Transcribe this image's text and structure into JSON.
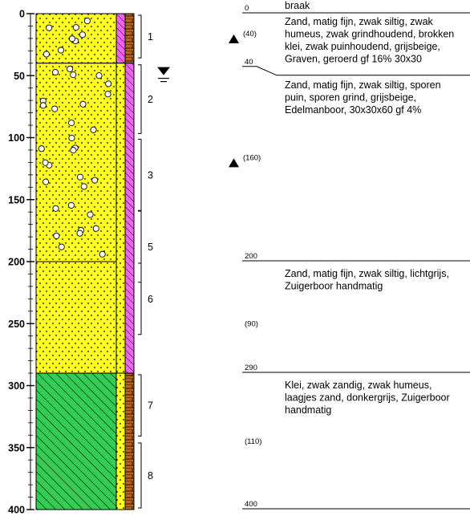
{
  "depth_axis": {
    "range_cm": [
      0,
      400
    ],
    "ticks": [
      {
        "depth": 0,
        "label": "0"
      },
      {
        "depth": 50,
        "label": "50"
      },
      {
        "depth": 100,
        "label": "100"
      },
      {
        "depth": 150,
        "label": "150"
      },
      {
        "depth": 200,
        "label": "200"
      },
      {
        "depth": 250,
        "label": "250"
      },
      {
        "depth": 300,
        "label": "300"
      },
      {
        "depth": 350,
        "label": "350"
      },
      {
        "depth": 400,
        "label": "400"
      }
    ]
  },
  "groundwater": {
    "depth": 47,
    "symbol": "water-table"
  },
  "layers": [
    {
      "top": 0,
      "bottom": 40,
      "lithology": "sand",
      "color": "#ffff22",
      "gravel": true
    },
    {
      "top": 40,
      "bottom": 200,
      "lithology": "sand",
      "color": "#ffff22",
      "gravel": true
    },
    {
      "top": 200,
      "bottom": 290,
      "lithology": "sand",
      "color": "#ffff22",
      "gravel": false
    },
    {
      "top": 290,
      "bottom": 400,
      "lithology": "clay",
      "color": "#33cc55",
      "gravel": false
    }
  ],
  "side_columns": [
    {
      "segments": [
        {
          "top": 0,
          "bottom": 40,
          "color": "#ee66ee",
          "pattern": "hatch"
        },
        {
          "top": 40,
          "bottom": 290,
          "color": "#ffff22",
          "pattern": "dots"
        },
        {
          "top": 290,
          "bottom": 400,
          "color": "#ffff22",
          "pattern": "dots"
        }
      ]
    },
    {
      "segments": [
        {
          "top": 0,
          "bottom": 40,
          "color": "#b5651d",
          "pattern": "brick"
        },
        {
          "top": 40,
          "bottom": 290,
          "color": "#ee66ee",
          "pattern": "hatch"
        },
        {
          "top": 290,
          "bottom": 400,
          "color": "#b5651d",
          "pattern": "brick"
        }
      ]
    }
  ],
  "samples": [
    {
      "label": "1",
      "top": 0,
      "bottom": 37
    },
    {
      "label": "2",
      "top": 40,
      "bottom": 98
    },
    {
      "label": "3",
      "top": 100,
      "bottom": 160
    },
    {
      "label": "5",
      "top": 158,
      "bottom": 218
    },
    {
      "label": "6",
      "top": 200,
      "bottom": 260
    },
    {
      "label": "7",
      "top": 290,
      "bottom": 342
    },
    {
      "label": "8",
      "top": 345,
      "bottom": 400
    }
  ],
  "markers": [
    {
      "depth": 20,
      "label": "(40)"
    },
    {
      "depth": 120,
      "label": "(160)"
    }
  ],
  "intervals": [
    {
      "depth": 0,
      "label": "0",
      "description": [
        "braak"
      ]
    },
    {
      "depth": 40,
      "label": "40",
      "description": [
        "Zand, matig fijn, zwak siltig, zwak",
        "humeus, zwak grindhoudend, brokken",
        "klei, zwak puinhoudend, grijsbeige,",
        "Graven, geroerd gf 16%  30x30"
      ]
    },
    {
      "depth": 200,
      "label": "200",
      "description": [
        "Zand, matig fijn, zwak siltig, sporen",
        "puin, sporen grind, grijsbeige,",
        "Edelmanboor, 30x30x60 gf 4%"
      ]
    },
    {
      "depth": 290,
      "label": "290",
      "description": [
        "Zand, matig fijn, zwak siltig, lichtgrijs,",
        "Zuigerboor handmatig"
      ]
    },
    {
      "depth": 400,
      "label": "400",
      "description": [
        "Klei, zwak zandig, zwak humeus,",
        "laagjes zand, donkergrijs, Zuigerboor",
        "handmatig"
      ]
    }
  ],
  "thickness_labels": [
    {
      "depth": 250,
      "label": "(90)"
    },
    {
      "depth": 345,
      "label": "(110)"
    }
  ]
}
